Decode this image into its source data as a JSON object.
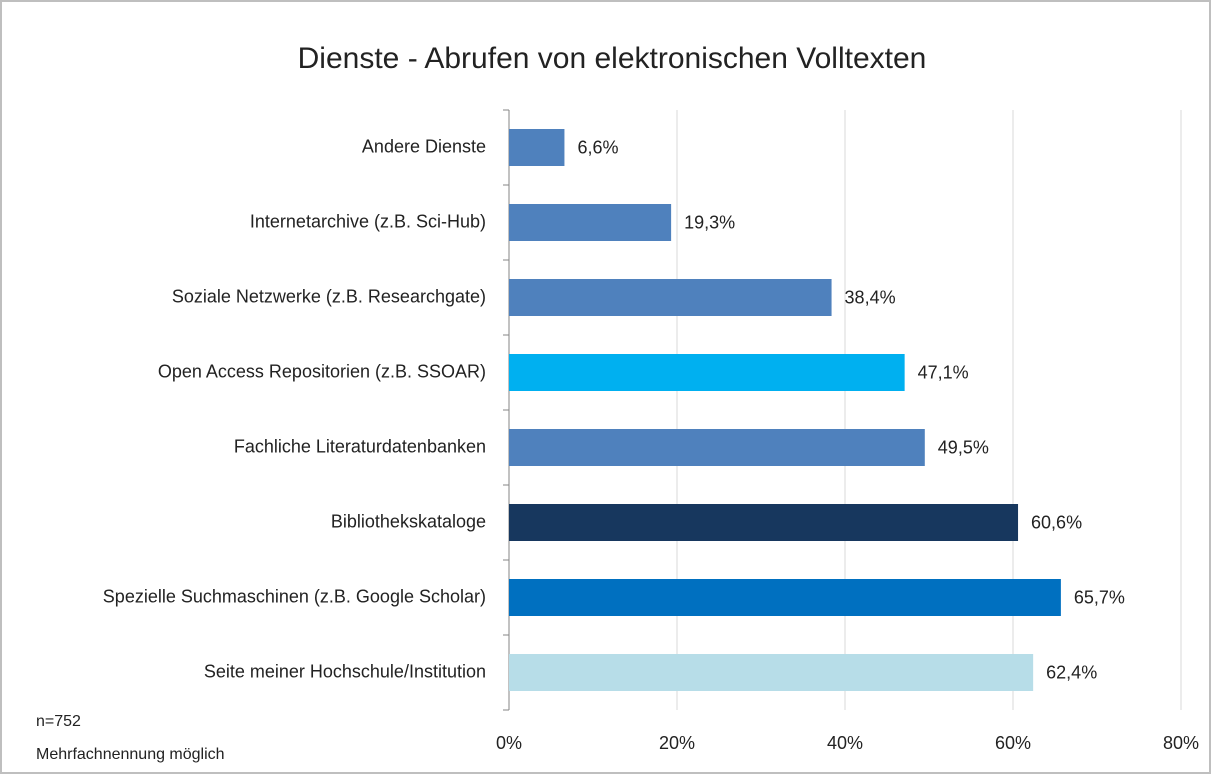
{
  "chart_data": {
    "type": "barh",
    "title": "Dienste - Abrufen von elektronischen Volltexten",
    "categories": [
      "Andere Dienste",
      "Internetarchive (z.B. Sci-Hub)",
      "Soziale Netzwerke (z.B. Researchgate)",
      "Open Access Repositorien (z.B. SSOAR)",
      "Fachliche Literaturdatenbanken",
      "Bibliothekskataloge",
      "Spezielle Suchmaschinen (z.B. Google Scholar)",
      "Seite meiner Hochschule/Institution"
    ],
    "values": [
      6.6,
      19.3,
      38.4,
      47.1,
      49.5,
      60.6,
      65.7,
      62.4
    ],
    "value_labels": [
      "6,6%",
      "19,3%",
      "38,4%",
      "47,1%",
      "49,5%",
      "60,6%",
      "65,7%",
      "62,4%"
    ],
    "colors": [
      "#4f81bd",
      "#4f81bd",
      "#4f81bd",
      "#00b0f0",
      "#4f81bd",
      "#17375e",
      "#0070c0",
      "#b7dde8"
    ],
    "xlim": [
      0,
      80
    ],
    "xticks": [
      {
        "value": 0,
        "label": "0%"
      },
      {
        "value": 20,
        "label": "20%"
      },
      {
        "value": 40,
        "label": "40%"
      },
      {
        "value": 60,
        "label": "60%"
      },
      {
        "value": 80,
        "label": "80%"
      }
    ],
    "grid": true,
    "annotations": [
      "n=752",
      "Mehrfachnennung möglich"
    ]
  }
}
